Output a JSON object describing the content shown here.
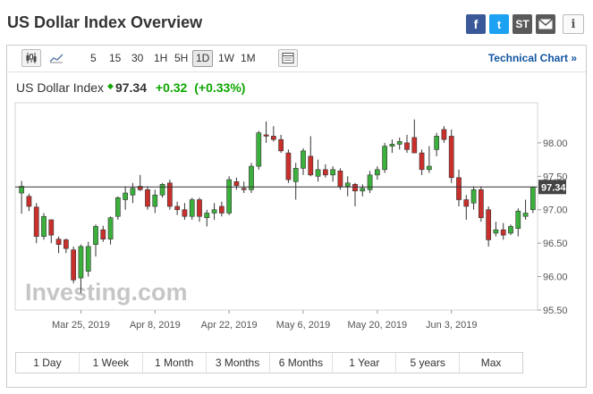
{
  "header": {
    "title": "US Dollar Index Overview"
  },
  "social": {
    "facebook": "f",
    "twitter": "t",
    "stocktwits": "ST",
    "info": "i"
  },
  "toolbar": {
    "intervals": [
      "5",
      "15",
      "30",
      "1H",
      "5H",
      "1D",
      "1W",
      "1M"
    ],
    "active_interval": "1D",
    "technical_chart": "Technical Chart »"
  },
  "quote": {
    "name": "US Dollar Index",
    "price": "97.34",
    "change": "+0.32",
    "change_pct": "(+0.33%)"
  },
  "watermark": "Investing.com",
  "ranges": [
    "1 Day",
    "1 Week",
    "1 Month",
    "3 Months",
    "6 Months",
    "1 Year",
    "5 years",
    "Max"
  ],
  "colors": {
    "up": "#3cb03c",
    "down": "#c9302c",
    "accent": "#0ea600",
    "link": "#1256a0"
  },
  "chart_data": {
    "type": "candlestick",
    "ylim": [
      95.5,
      98.6
    ],
    "yticks": [
      "98.00",
      "97.50",
      "97.00",
      "96.50",
      "96.00",
      "95.50"
    ],
    "x_labels": [
      {
        "label": "Mar 25, 2019",
        "index": 8
      },
      {
        "label": "Apr 8, 2019",
        "index": 18
      },
      {
        "label": "Apr 22, 2019",
        "index": 28
      },
      {
        "label": "May 6, 2019",
        "index": 38
      },
      {
        "label": "May 20, 2019",
        "index": 48
      },
      {
        "label": "Jun 3, 2019",
        "index": 58
      }
    ],
    "last_price": 97.34,
    "last_price_label": "97.34",
    "candles": [
      {
        "o": 97.25,
        "h": 97.43,
        "l": 96.94,
        "c": 97.35
      },
      {
        "o": 97.2,
        "h": 97.24,
        "l": 96.98,
        "c": 97.05
      },
      {
        "o": 97.04,
        "h": 97.1,
        "l": 96.5,
        "c": 96.6
      },
      {
        "o": 96.6,
        "h": 96.95,
        "l": 96.55,
        "c": 96.9
      },
      {
        "o": 96.85,
        "h": 96.85,
        "l": 96.5,
        "c": 96.62
      },
      {
        "o": 96.56,
        "h": 96.6,
        "l": 96.35,
        "c": 96.48
      },
      {
        "o": 96.55,
        "h": 96.57,
        "l": 96.35,
        "c": 96.42
      },
      {
        "o": 96.4,
        "h": 96.45,
        "l": 95.9,
        "c": 95.95
      },
      {
        "o": 95.98,
        "h": 96.48,
        "l": 95.75,
        "c": 96.45
      },
      {
        "o": 96.08,
        "h": 96.52,
        "l": 96.0,
        "c": 96.45
      },
      {
        "o": 96.48,
        "h": 96.78,
        "l": 96.3,
        "c": 96.75
      },
      {
        "o": 96.7,
        "h": 96.76,
        "l": 96.52,
        "c": 96.56
      },
      {
        "o": 96.56,
        "h": 96.9,
        "l": 96.48,
        "c": 96.88
      },
      {
        "o": 96.9,
        "h": 97.2,
        "l": 96.85,
        "c": 97.18
      },
      {
        "o": 97.15,
        "h": 97.35,
        "l": 97.0,
        "c": 97.25
      },
      {
        "o": 97.22,
        "h": 97.4,
        "l": 97.1,
        "c": 97.32
      },
      {
        "o": 97.35,
        "h": 97.52,
        "l": 97.28,
        "c": 97.3
      },
      {
        "o": 97.3,
        "h": 97.35,
        "l": 97.0,
        "c": 97.05
      },
      {
        "o": 97.05,
        "h": 97.3,
        "l": 96.95,
        "c": 97.22
      },
      {
        "o": 97.22,
        "h": 97.4,
        "l": 97.18,
        "c": 97.38
      },
      {
        "o": 97.4,
        "h": 97.45,
        "l": 97.0,
        "c": 97.05
      },
      {
        "o": 97.05,
        "h": 97.12,
        "l": 96.92,
        "c": 97.0
      },
      {
        "o": 97.0,
        "h": 97.1,
        "l": 96.85,
        "c": 96.9
      },
      {
        "o": 96.9,
        "h": 97.18,
        "l": 96.85,
        "c": 97.15
      },
      {
        "o": 97.15,
        "h": 97.18,
        "l": 96.82,
        "c": 96.9
      },
      {
        "o": 96.88,
        "h": 97.0,
        "l": 96.75,
        "c": 96.95
      },
      {
        "o": 96.95,
        "h": 97.1,
        "l": 96.85,
        "c": 97.0
      },
      {
        "o": 97.05,
        "h": 97.12,
        "l": 96.9,
        "c": 96.95
      },
      {
        "o": 96.95,
        "h": 97.5,
        "l": 96.92,
        "c": 97.45
      },
      {
        "o": 97.42,
        "h": 97.48,
        "l": 97.3,
        "c": 97.36
      },
      {
        "o": 97.32,
        "h": 97.42,
        "l": 97.25,
        "c": 97.3
      },
      {
        "o": 97.3,
        "h": 97.7,
        "l": 97.25,
        "c": 97.65
      },
      {
        "o": 97.65,
        "h": 98.18,
        "l": 97.6,
        "c": 98.15
      },
      {
        "o": 98.12,
        "h": 98.32,
        "l": 98.0,
        "c": 98.1
      },
      {
        "o": 98.1,
        "h": 98.25,
        "l": 98.02,
        "c": 98.05
      },
      {
        "o": 98.05,
        "h": 98.12,
        "l": 97.85,
        "c": 97.88
      },
      {
        "o": 97.85,
        "h": 97.9,
        "l": 97.4,
        "c": 97.45
      },
      {
        "o": 97.42,
        "h": 97.7,
        "l": 97.15,
        "c": 97.62
      },
      {
        "o": 97.62,
        "h": 97.92,
        "l": 97.52,
        "c": 97.88
      },
      {
        "o": 97.8,
        "h": 98.1,
        "l": 97.5,
        "c": 97.52
      },
      {
        "o": 97.5,
        "h": 97.75,
        "l": 97.42,
        "c": 97.6
      },
      {
        "o": 97.6,
        "h": 97.68,
        "l": 97.48,
        "c": 97.52
      },
      {
        "o": 97.52,
        "h": 97.65,
        "l": 97.42,
        "c": 97.6
      },
      {
        "o": 97.58,
        "h": 97.62,
        "l": 97.3,
        "c": 97.35
      },
      {
        "o": 97.35,
        "h": 97.5,
        "l": 97.2,
        "c": 97.4
      },
      {
        "o": 97.38,
        "h": 97.4,
        "l": 97.05,
        "c": 97.28
      },
      {
        "o": 97.28,
        "h": 97.38,
        "l": 97.2,
        "c": 97.32
      },
      {
        "o": 97.3,
        "h": 97.58,
        "l": 97.25,
        "c": 97.52
      },
      {
        "o": 97.52,
        "h": 97.65,
        "l": 97.45,
        "c": 97.6
      },
      {
        "o": 97.6,
        "h": 98.0,
        "l": 97.55,
        "c": 97.95
      },
      {
        "o": 97.95,
        "h": 98.05,
        "l": 97.85,
        "c": 97.98
      },
      {
        "o": 97.98,
        "h": 98.08,
        "l": 97.9,
        "c": 98.02
      },
      {
        "o": 98.0,
        "h": 98.12,
        "l": 97.85,
        "c": 97.9
      },
      {
        "o": 98.08,
        "h": 98.35,
        "l": 97.85,
        "c": 97.85
      },
      {
        "o": 97.85,
        "h": 97.9,
        "l": 97.52,
        "c": 97.6
      },
      {
        "o": 97.6,
        "h": 97.95,
        "l": 97.55,
        "c": 97.65
      },
      {
        "o": 97.9,
        "h": 98.15,
        "l": 97.8,
        "c": 98.1
      },
      {
        "o": 98.2,
        "h": 98.25,
        "l": 98.0,
        "c": 98.05
      },
      {
        "o": 98.1,
        "h": 98.2,
        "l": 97.4,
        "c": 97.48
      },
      {
        "o": 97.48,
        "h": 97.6,
        "l": 97.05,
        "c": 97.15
      },
      {
        "o": 97.15,
        "h": 97.22,
        "l": 96.85,
        "c": 97.05
      },
      {
        "o": 97.1,
        "h": 97.35,
        "l": 97.0,
        "c": 97.3
      },
      {
        "o": 97.3,
        "h": 97.35,
        "l": 96.82,
        "c": 96.88
      },
      {
        "o": 97.0,
        "h": 97.05,
        "l": 96.45,
        "c": 96.55
      },
      {
        "o": 96.65,
        "h": 96.82,
        "l": 96.6,
        "c": 96.7
      },
      {
        "o": 96.7,
        "h": 96.8,
        "l": 96.55,
        "c": 96.62
      },
      {
        "o": 96.65,
        "h": 96.78,
        "l": 96.62,
        "c": 96.75
      },
      {
        "o": 96.72,
        "h": 97.02,
        "l": 96.6,
        "c": 96.98
      },
      {
        "o": 96.9,
        "h": 97.15,
        "l": 96.85,
        "c": 96.95
      },
      {
        "o": 97.0,
        "h": 97.35,
        "l": 96.95,
        "c": 97.34
      }
    ]
  }
}
